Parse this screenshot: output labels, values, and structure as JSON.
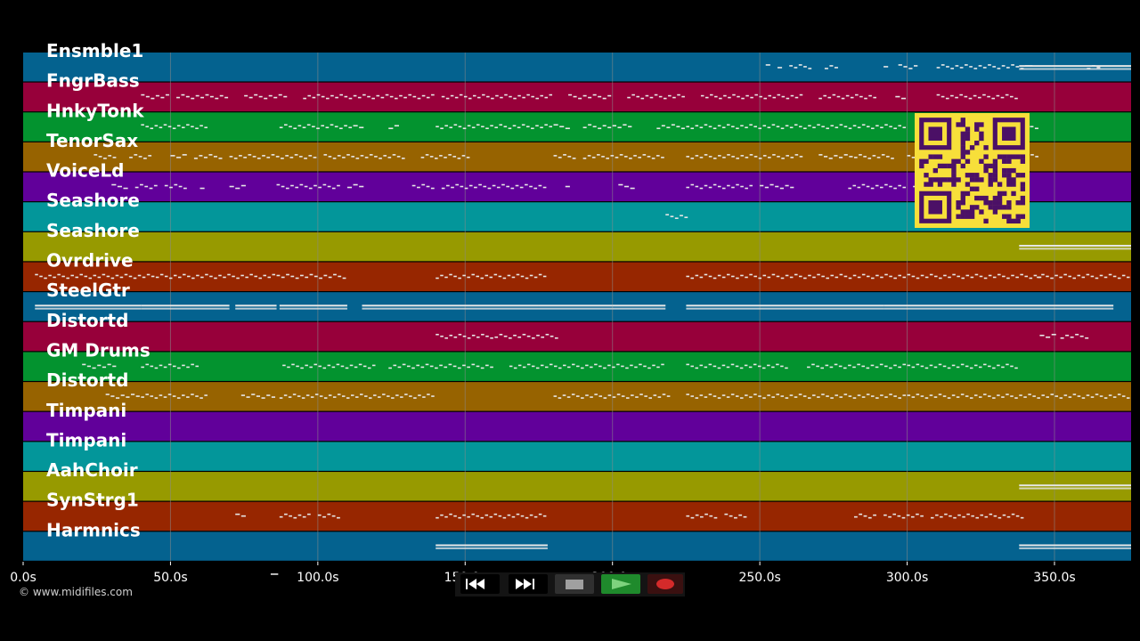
{
  "tracks": [
    {
      "name": "Ensmble1",
      "color": "#04628f"
    },
    {
      "name": "FngrBass",
      "color": "#97003a"
    },
    {
      "name": "HnkyTonk",
      "color": "#03932f"
    },
    {
      "name": "TenorSax",
      "color": "#976300"
    },
    {
      "name": "VoiceLd",
      "color": "#61009a"
    },
    {
      "name": "Seashore",
      "color": "#03969a"
    },
    {
      "name": "Seashore",
      "color": "#979a00"
    },
    {
      "name": "Ovrdrive",
      "color": "#972600"
    },
    {
      "name": "SteelGtr",
      "color": "#04628f"
    },
    {
      "name": "Distortd",
      "color": "#97003a"
    },
    {
      "name": "GM Drums",
      "color": "#03932f"
    },
    {
      "name": "Distortd",
      "color": "#976300"
    },
    {
      "name": "Timpani",
      "color": "#61009a"
    },
    {
      "name": "Timpani",
      "color": "#03969a"
    },
    {
      "name": "AahChoir",
      "color": "#979a00"
    },
    {
      "name": "SynStrg1",
      "color": "#972600"
    },
    {
      "name": "Harmnics",
      "color": "#04628f"
    }
  ],
  "timeline": {
    "xmax": 376,
    "ticks": [
      {
        "v": 0,
        "label": "0.0s"
      },
      {
        "v": 50,
        "label": "50.0s"
      },
      {
        "v": 100,
        "label": "100.0s"
      },
      {
        "v": 150,
        "label": "150.0s"
      },
      {
        "v": 200,
        "label": "200.0s"
      },
      {
        "v": 250,
        "label": "250.0s"
      },
      {
        "v": 300,
        "label": "300.0s"
      },
      {
        "v": 350,
        "label": "350.0s"
      }
    ]
  },
  "notes": [
    {
      "track": 0,
      "segs": [
        [
          252,
          254
        ],
        [
          256,
          258
        ],
        [
          260,
          268
        ],
        [
          272,
          277
        ],
        [
          292,
          294
        ],
        [
          297,
          304
        ],
        [
          310,
          340
        ],
        [
          340,
          343
        ],
        [
          361,
          366
        ]
      ]
    },
    {
      "track": 0,
      "segs": [
        [
          338,
          376
        ]
      ],
      "long": true
    },
    {
      "track": 1,
      "segs": [
        [
          40,
          50
        ],
        [
          52,
          70
        ],
        [
          75,
          90
        ],
        [
          95,
          140
        ],
        [
          142,
          180
        ],
        [
          185,
          200
        ],
        [
          205,
          225
        ],
        [
          230,
          265
        ],
        [
          270,
          290
        ],
        [
          296,
          300
        ],
        [
          310,
          338
        ]
      ]
    },
    {
      "track": 2,
      "segs": [
        [
          40,
          63
        ],
        [
          87,
          112
        ],
        [
          112,
          116
        ],
        [
          124,
          128
        ],
        [
          140,
          180
        ],
        [
          180,
          186
        ],
        [
          190,
          200
        ],
        [
          200,
          207
        ],
        [
          215,
          225
        ],
        [
          225,
          300
        ],
        [
          340,
          345
        ]
      ]
    },
    {
      "track": 3,
      "segs": [
        [
          24,
          32
        ],
        [
          36,
          44
        ],
        [
          50,
          56
        ],
        [
          58,
          68
        ],
        [
          70,
          100
        ],
        [
          102,
          130
        ],
        [
          135,
          152
        ],
        [
          180,
          188
        ],
        [
          190,
          218
        ],
        [
          225,
          265
        ],
        [
          270,
          282
        ],
        [
          282,
          296
        ],
        [
          300,
          345
        ]
      ]
    },
    {
      "track": 4,
      "segs": [
        [
          30,
          36
        ],
        [
          38,
          46
        ],
        [
          48,
          56
        ],
        [
          60,
          62
        ],
        [
          70,
          76
        ],
        [
          86,
          108
        ],
        [
          110,
          116
        ],
        [
          132,
          140
        ],
        [
          142,
          178
        ],
        [
          184,
          186
        ],
        [
          202,
          208
        ],
        [
          225,
          248
        ],
        [
          250,
          262
        ],
        [
          280,
          300
        ],
        [
          302,
          340
        ]
      ]
    },
    {
      "track": 5,
      "segs": [
        [
          218,
          226
        ]
      ]
    },
    {
      "track": 6,
      "segs": [
        [
          338,
          376
        ]
      ],
      "long": true
    },
    {
      "track": 7,
      "segs": [
        [
          4,
          45
        ],
        [
          45,
          86
        ],
        [
          86,
          110
        ],
        [
          140,
          178
        ],
        [
          225,
          300
        ],
        [
          300,
          346
        ],
        [
          344,
          376
        ]
      ]
    },
    {
      "track": 8,
      "segs": [
        [
          4,
          40
        ],
        [
          40,
          70
        ],
        [
          72,
          86
        ],
        [
          87,
          110
        ],
        [
          115,
          175
        ],
        [
          175,
          200
        ],
        [
          200,
          218
        ],
        [
          225,
          292
        ],
        [
          292,
          370
        ]
      ],
      "long": true
    },
    {
      "track": 9,
      "segs": [
        [
          140,
          160
        ],
        [
          160,
          182
        ],
        [
          345,
          351
        ],
        [
          352,
          362
        ]
      ]
    },
    {
      "track": 10,
      "segs": [
        [
          20,
          32
        ],
        [
          40,
          60
        ],
        [
          88,
          120
        ],
        [
          124,
          160
        ],
        [
          165,
          218
        ],
        [
          225,
          260
        ],
        [
          266,
          300
        ],
        [
          300,
          338
        ]
      ]
    },
    {
      "track": 11,
      "segs": [
        [
          28,
          40
        ],
        [
          40,
          63
        ],
        [
          74,
          86
        ],
        [
          87,
          140
        ],
        [
          180,
          220
        ],
        [
          225,
          254
        ],
        [
          254,
          300
        ],
        [
          300,
          376
        ]
      ]
    },
    {
      "track": 14,
      "segs": [
        [
          338,
          376
        ]
      ],
      "long": true
    },
    {
      "track": 15,
      "segs": [
        [
          72,
          76
        ],
        [
          87,
          98
        ],
        [
          100,
          108
        ],
        [
          140,
          178
        ],
        [
          225,
          236
        ],
        [
          238,
          246
        ],
        [
          282,
          290
        ],
        [
          292,
          306
        ],
        [
          308,
          340
        ]
      ]
    },
    {
      "track": 16,
      "segs": [
        [
          140,
          178
        ],
        [
          338,
          376
        ]
      ],
      "long": true
    },
    {
      "track": 17,
      "segs": [
        [
          84,
          87
        ]
      ]
    }
  ],
  "copyright": "© www.midifiles.com",
  "transport": {
    "rewind_icon": "rewind-icon",
    "fastforward_icon": "fast-forward-icon",
    "stop_icon": "stop-icon",
    "play_icon": "play-icon",
    "record_icon": "record-icon"
  },
  "qr_icon": "qr-code-icon",
  "colors": {
    "background": "#000000",
    "grid": "#8a8a8a",
    "note": "#e6e6e6"
  }
}
